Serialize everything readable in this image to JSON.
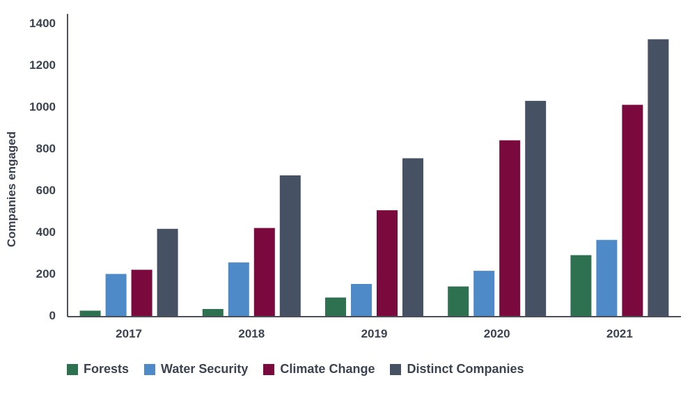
{
  "chart_data": {
    "type": "bar",
    "ylabel": "Companies engaged",
    "xlabel": "",
    "ylim": [
      0,
      1400
    ],
    "yticks": [
      0,
      200,
      400,
      600,
      800,
      1000,
      1200,
      1400
    ],
    "categories": [
      "2017",
      "2018",
      "2019",
      "2020",
      "2021"
    ],
    "series": [
      {
        "name": "Forests",
        "color": "#2e7150",
        "values": [
          22,
          30,
          85,
          138,
          288
        ]
      },
      {
        "name": "Water Security",
        "color": "#4e8ac8",
        "values": [
          198,
          253,
          150,
          213,
          361
        ]
      },
      {
        "name": "Climate Change",
        "color": "#7a0a3e",
        "values": [
          218,
          418,
          503,
          838,
          1008
        ]
      },
      {
        "name": "Distinct Companies",
        "color": "#465263",
        "values": [
          414,
          670,
          752,
          1027,
          1322
        ]
      }
    ],
    "grid": false,
    "legend_position": "bottom-left"
  }
}
